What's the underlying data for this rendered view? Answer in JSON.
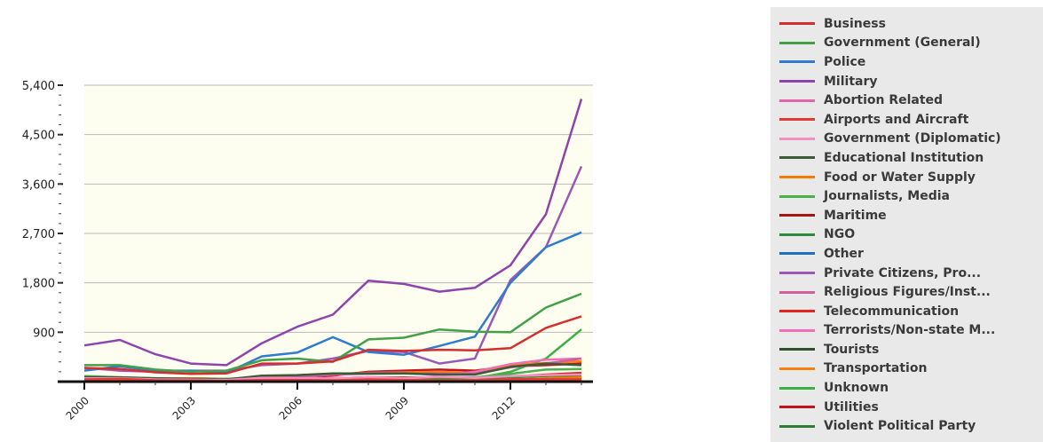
{
  "chart_data": {
    "type": "line",
    "title": "",
    "xlabel": "",
    "ylabel": "",
    "x": [
      2000,
      2001,
      2002,
      2003,
      2004,
      2005,
      2006,
      2007,
      2008,
      2009,
      2010,
      2011,
      2012,
      2013,
      2014
    ],
    "x_ticks": [
      "2000",
      "2003",
      "2006",
      "2009",
      "2012"
    ],
    "y_ticks": [
      "900",
      "1,800",
      "2,700",
      "3,600",
      "4,500",
      "5,400"
    ],
    "y_tick_values": [
      900,
      1800,
      2700,
      3600,
      4500,
      5400
    ],
    "ylim": [
      0,
      5400
    ],
    "background": "#fefef0",
    "grid": true,
    "legend_position": "right",
    "series": [
      {
        "name": "Business",
        "color": "#d32f2f",
        "values": [
          250,
          230,
          170,
          140,
          150,
          330,
          330,
          370,
          580,
          560,
          580,
          570,
          610,
          980,
          1190
        ]
      },
      {
        "name": "Government (General)",
        "color": "#43a047",
        "values": [
          300,
          300,
          220,
          180,
          200,
          390,
          420,
          360,
          770,
          800,
          950,
          910,
          900,
          1350,
          1600
        ]
      },
      {
        "name": "Police",
        "color": "#2e7bcf",
        "values": [
          200,
          280,
          200,
          200,
          160,
          460,
          530,
          810,
          540,
          490,
          650,
          820,
          1800,
          2450,
          2720
        ]
      },
      {
        "name": "Military",
        "color": "#8e44ad",
        "values": [
          660,
          760,
          500,
          330,
          300,
          700,
          1000,
          1220,
          1840,
          1780,
          1640,
          1710,
          2120,
          3050,
          5150
        ]
      },
      {
        "name": "Abortion Related",
        "color": "#e066aa",
        "values": [
          5,
          5,
          3,
          2,
          2,
          3,
          2,
          2,
          2,
          3,
          3,
          2,
          2,
          3,
          2
        ]
      },
      {
        "name": "Airports and Aircraft",
        "color": "#e53935",
        "values": [
          40,
          50,
          25,
          20,
          15,
          30,
          30,
          25,
          40,
          30,
          25,
          25,
          45,
          45,
          40
        ]
      },
      {
        "name": "Government (Diplomatic)",
        "color": "#f48fc4",
        "values": [
          60,
          60,
          40,
          35,
          30,
          70,
          60,
          60,
          80,
          60,
          90,
          70,
          100,
          120,
          130
        ]
      },
      {
        "name": "Educational Institution",
        "color": "#3a5a3a",
        "values": [
          80,
          80,
          60,
          50,
          40,
          110,
          120,
          150,
          150,
          150,
          130,
          130,
          270,
          330,
          300
        ]
      },
      {
        "name": "Food or Water Supply",
        "color": "#f57c00",
        "values": [
          10,
          10,
          8,
          8,
          10,
          12,
          15,
          20,
          20,
          30,
          20,
          25,
          40,
          60,
          80
        ]
      },
      {
        "name": "Journalists, Media",
        "color": "#4caf50",
        "values": [
          60,
          60,
          50,
          40,
          40,
          60,
          60,
          60,
          80,
          70,
          80,
          80,
          140,
          220,
          230
        ]
      },
      {
        "name": "Maritime",
        "color": "#a31515",
        "values": [
          20,
          20,
          15,
          10,
          10,
          15,
          10,
          10,
          15,
          15,
          20,
          20,
          25,
          30,
          40
        ]
      },
      {
        "name": "NGO",
        "color": "#2e8b3a",
        "values": [
          50,
          40,
          30,
          30,
          20,
          40,
          40,
          40,
          50,
          60,
          50,
          60,
          80,
          100,
          130
        ]
      },
      {
        "name": "Other",
        "color": "#1e6fc0",
        "values": [
          10,
          10,
          5,
          5,
          5,
          10,
          10,
          15,
          10,
          10,
          15,
          15,
          20,
          30,
          40
        ]
      },
      {
        "name": "Private Citizens, Pro...",
        "color": "#9b59b6",
        "values": [
          250,
          200,
          180,
          200,
          200,
          300,
          330,
          420,
          560,
          540,
          330,
          420,
          1850,
          2450,
          3920
        ]
      },
      {
        "name": "Religious Figures/Inst...",
        "color": "#d15fa0",
        "values": [
          40,
          40,
          30,
          30,
          25,
          60,
          80,
          130,
          140,
          150,
          150,
          140,
          260,
          330,
          420
        ]
      },
      {
        "name": "Telecommunication",
        "color": "#e8231f",
        "values": [
          30,
          30,
          20,
          20,
          15,
          40,
          50,
          60,
          70,
          80,
          60,
          70,
          90,
          130,
          160
        ]
      },
      {
        "name": "Terrorists/Non-state M...",
        "color": "#f06eb4",
        "values": [
          20,
          20,
          20,
          30,
          30,
          60,
          80,
          130,
          160,
          160,
          120,
          180,
          320,
          400,
          420
        ]
      },
      {
        "name": "Tourists",
        "color": "#2f4f2f",
        "values": [
          20,
          15,
          10,
          10,
          10,
          20,
          20,
          15,
          20,
          15,
          15,
          15,
          20,
          25,
          20
        ]
      },
      {
        "name": "Transportation",
        "color": "#ff7f0e",
        "values": [
          60,
          70,
          50,
          60,
          40,
          90,
          100,
          140,
          160,
          170,
          180,
          160,
          300,
          340,
          370
        ]
      },
      {
        "name": "Unknown",
        "color": "#3cb043",
        "values": [
          100,
          80,
          60,
          60,
          50,
          70,
          60,
          50,
          50,
          50,
          50,
          60,
          180,
          420,
          950
        ]
      },
      {
        "name": "Utilities",
        "color": "#c0151a",
        "values": [
          50,
          50,
          40,
          40,
          40,
          70,
          80,
          110,
          180,
          200,
          220,
          200,
          280,
          300,
          330
        ]
      },
      {
        "name": "Violent Political Party",
        "color": "#2e7d32",
        "values": [
          80,
          70,
          60,
          60,
          50,
          70,
          70,
          60,
          80,
          80,
          70,
          60,
          100,
          110,
          90
        ]
      }
    ]
  }
}
